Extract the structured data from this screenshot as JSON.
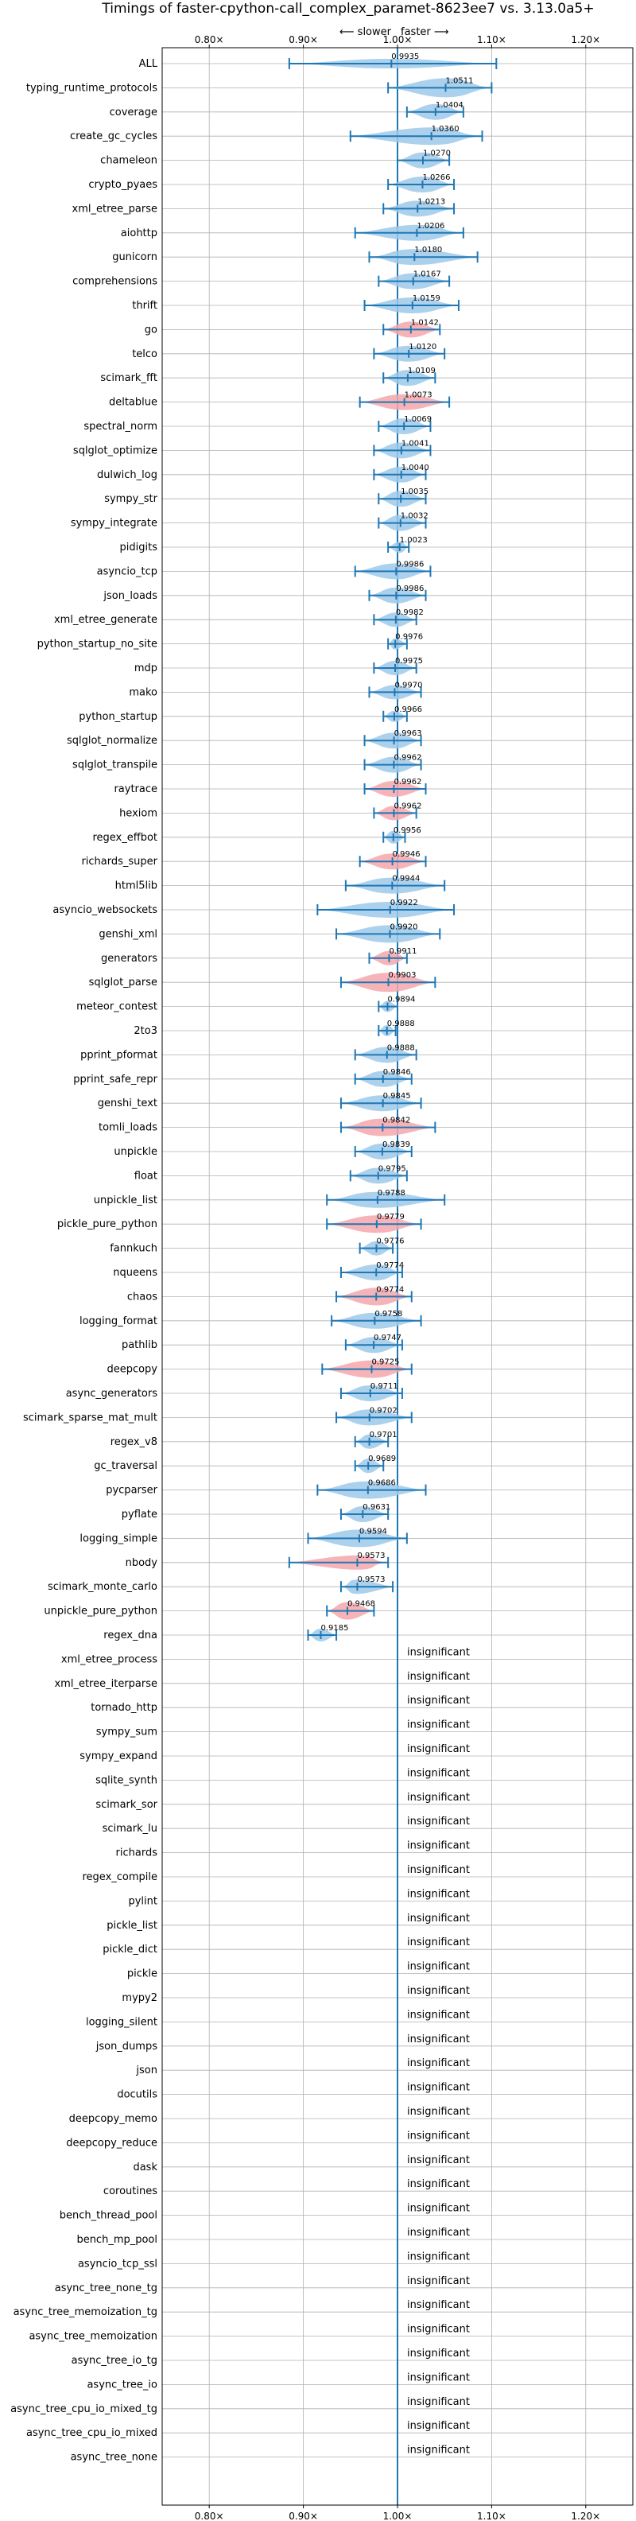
{
  "chart_data": {
    "type": "violin",
    "title": "Timings of faster-cpython-call_complex_paramet-8623ee7 vs. 3.13.0a5+",
    "direction_labels": {
      "slower": "⟵ slower",
      "faster": "faster ⟶"
    },
    "xlim": [
      0.75,
      1.25
    ],
    "xticks": [
      0.8,
      0.9,
      1.0,
      1.1,
      1.2
    ],
    "xtick_labels": [
      "0.80×",
      "0.90×",
      "1.00×",
      "1.10×",
      "1.20×"
    ],
    "grid": true,
    "reference_line": 1.0,
    "colors": {
      "faster": "#9ec9ea",
      "slower": "#f4a7ad",
      "line": "#1f77b4",
      "grid": "#b0b0b0"
    },
    "insignificant_label": "insignificant",
    "benchmarks": [
      {
        "name": "ALL",
        "value": 0.9935,
        "label": "0.9935",
        "lo": 0.885,
        "hi": 1.105,
        "color": "faster",
        "width": 0.3
      },
      {
        "name": "typing_runtime_protocols",
        "value": 1.0511,
        "label": "1.0511",
        "lo": 0.99,
        "hi": 1.1,
        "color": "faster",
        "width": 0.9
      },
      {
        "name": "coverage",
        "value": 1.0404,
        "label": "1.0404",
        "lo": 1.01,
        "hi": 1.07,
        "color": "faster",
        "width": 0.7
      },
      {
        "name": "create_gc_cycles",
        "value": 1.036,
        "label": "1.0360",
        "lo": 0.95,
        "hi": 1.09,
        "color": "faster",
        "width": 0.8
      },
      {
        "name": "chameleon",
        "value": 1.027,
        "label": "1.0270",
        "lo": 1.0,
        "hi": 1.055,
        "color": "faster",
        "width": 0.7
      },
      {
        "name": "crypto_pyaes",
        "value": 1.0266,
        "label": "1.0266",
        "lo": 0.99,
        "hi": 1.06,
        "color": "faster",
        "width": 0.7
      },
      {
        "name": "xml_etree_parse",
        "value": 1.0213,
        "label": "1.0213",
        "lo": 0.985,
        "hi": 1.06,
        "color": "faster",
        "width": 0.7
      },
      {
        "name": "aiohttp",
        "value": 1.0206,
        "label": "1.0206",
        "lo": 0.955,
        "hi": 1.07,
        "color": "faster",
        "width": 0.7
      },
      {
        "name": "gunicorn",
        "value": 1.018,
        "label": "1.0180",
        "lo": 0.97,
        "hi": 1.085,
        "color": "faster",
        "width": 0.7
      },
      {
        "name": "comprehensions",
        "value": 1.0167,
        "label": "1.0167",
        "lo": 0.98,
        "hi": 1.055,
        "color": "faster",
        "width": 0.7
      },
      {
        "name": "thrift",
        "value": 1.0159,
        "label": "1.0159",
        "lo": 0.965,
        "hi": 1.065,
        "color": "faster",
        "width": 0.7
      },
      {
        "name": "go",
        "value": 1.0142,
        "label": "1.0142",
        "lo": 0.985,
        "hi": 1.045,
        "color": "slower",
        "width": 0.7
      },
      {
        "name": "telco",
        "value": 1.012,
        "label": "1.0120",
        "lo": 0.975,
        "hi": 1.05,
        "color": "faster",
        "width": 0.7
      },
      {
        "name": "scimark_fft",
        "value": 1.0109,
        "label": "1.0109",
        "lo": 0.985,
        "hi": 1.04,
        "color": "faster",
        "width": 0.7
      },
      {
        "name": "deltablue",
        "value": 1.0073,
        "label": "1.0073",
        "lo": 0.96,
        "hi": 1.055,
        "color": "slower",
        "width": 0.7
      },
      {
        "name": "spectral_norm",
        "value": 1.0069,
        "label": "1.0069",
        "lo": 0.98,
        "hi": 1.035,
        "color": "faster",
        "width": 0.7
      },
      {
        "name": "sqlglot_optimize",
        "value": 1.0041,
        "label": "1.0041",
        "lo": 0.975,
        "hi": 1.035,
        "color": "faster",
        "width": 0.7
      },
      {
        "name": "dulwich_log",
        "value": 1.004,
        "label": "1.0040",
        "lo": 0.975,
        "hi": 1.03,
        "color": "faster",
        "width": 0.7
      },
      {
        "name": "sympy_str",
        "value": 1.0035,
        "label": "1.0035",
        "lo": 0.98,
        "hi": 1.03,
        "color": "faster",
        "width": 0.7
      },
      {
        "name": "sympy_integrate",
        "value": 1.0032,
        "label": "1.0032",
        "lo": 0.98,
        "hi": 1.03,
        "color": "faster",
        "width": 0.7
      },
      {
        "name": "pidigits",
        "value": 1.0023,
        "label": "1.0023",
        "lo": 0.99,
        "hi": 1.012,
        "color": "faster",
        "width": 0.4
      },
      {
        "name": "asyncio_tcp",
        "value": 0.9986,
        "label": "0.9986",
        "lo": 0.955,
        "hi": 1.035,
        "color": "faster",
        "width": 0.7
      },
      {
        "name": "json_loads",
        "value": 0.9986,
        "label": "0.9986",
        "lo": 0.97,
        "hi": 1.03,
        "color": "faster",
        "width": 0.7
      },
      {
        "name": "xml_etree_generate",
        "value": 0.9982,
        "label": "0.9982",
        "lo": 0.975,
        "hi": 1.02,
        "color": "faster",
        "width": 0.6
      },
      {
        "name": "python_startup_no_site",
        "value": 0.9976,
        "label": "0.9976",
        "lo": 0.99,
        "hi": 1.01,
        "color": "faster",
        "width": 0.4
      },
      {
        "name": "mdp",
        "value": 0.9975,
        "label": "0.9975",
        "lo": 0.975,
        "hi": 1.02,
        "color": "faster",
        "width": 0.6
      },
      {
        "name": "mako",
        "value": 0.997,
        "label": "0.9970",
        "lo": 0.97,
        "hi": 1.025,
        "color": "faster",
        "width": 0.6
      },
      {
        "name": "python_startup",
        "value": 0.9966,
        "label": "0.9966",
        "lo": 0.985,
        "hi": 1.01,
        "color": "faster",
        "width": 0.4
      },
      {
        "name": "sqlglot_normalize",
        "value": 0.9963,
        "label": "0.9963",
        "lo": 0.965,
        "hi": 1.025,
        "color": "faster",
        "width": 0.7
      },
      {
        "name": "sqlglot_transpile",
        "value": 0.9962,
        "label": "0.9962",
        "lo": 0.965,
        "hi": 1.025,
        "color": "faster",
        "width": 0.7
      },
      {
        "name": "raytrace",
        "value": 0.9962,
        "label": "0.9962",
        "lo": 0.965,
        "hi": 1.03,
        "color": "slower",
        "width": 0.7
      },
      {
        "name": "hexiom",
        "value": 0.9962,
        "label": "0.9962",
        "lo": 0.975,
        "hi": 1.02,
        "color": "slower",
        "width": 0.6
      },
      {
        "name": "regex_effbot",
        "value": 0.9956,
        "label": "0.9956",
        "lo": 0.985,
        "hi": 1.008,
        "color": "faster",
        "width": 0.5
      },
      {
        "name": "richards_super",
        "value": 0.9946,
        "label": "0.9946",
        "lo": 0.96,
        "hi": 1.03,
        "color": "slower",
        "width": 0.7
      },
      {
        "name": "html5lib",
        "value": 0.9944,
        "label": "0.9944",
        "lo": 0.945,
        "hi": 1.05,
        "color": "faster",
        "width": 0.7
      },
      {
        "name": "asyncio_websockets",
        "value": 0.9922,
        "label": "0.9922",
        "lo": 0.915,
        "hi": 1.06,
        "color": "faster",
        "width": 0.7
      },
      {
        "name": "genshi_xml",
        "value": 0.992,
        "label": "0.9920",
        "lo": 0.935,
        "hi": 1.045,
        "color": "faster",
        "width": 0.8
      },
      {
        "name": "generators",
        "value": 0.9911,
        "label": "0.9911",
        "lo": 0.97,
        "hi": 1.01,
        "color": "slower",
        "width": 0.6
      },
      {
        "name": "sqlglot_parse",
        "value": 0.9903,
        "label": "0.9903",
        "lo": 0.94,
        "hi": 1.04,
        "color": "slower",
        "width": 0.9
      },
      {
        "name": "meteor_contest",
        "value": 0.9894,
        "label": "0.9894",
        "lo": 0.98,
        "hi": 1.0,
        "color": "faster",
        "width": 0.4
      },
      {
        "name": "2to3",
        "value": 0.9888,
        "label": "0.9888",
        "lo": 0.98,
        "hi": 0.998,
        "color": "faster",
        "width": 0.4
      },
      {
        "name": "pprint_pformat",
        "value": 0.9888,
        "label": "0.9888",
        "lo": 0.955,
        "hi": 1.02,
        "color": "faster",
        "width": 0.7
      },
      {
        "name": "pprint_safe_repr",
        "value": 0.9846,
        "label": "0.9846",
        "lo": 0.955,
        "hi": 1.015,
        "color": "faster",
        "width": 0.7
      },
      {
        "name": "genshi_text",
        "value": 0.9845,
        "label": "0.9845",
        "lo": 0.94,
        "hi": 1.025,
        "color": "faster",
        "width": 0.7
      },
      {
        "name": "tomli_loads",
        "value": 0.9842,
        "label": "0.9842",
        "lo": 0.94,
        "hi": 1.04,
        "color": "slower",
        "width": 0.8
      },
      {
        "name": "unpickle",
        "value": 0.9839,
        "label": "0.9839",
        "lo": 0.955,
        "hi": 1.015,
        "color": "faster",
        "width": 0.7
      },
      {
        "name": "float",
        "value": 0.9795,
        "label": "0.9795",
        "lo": 0.95,
        "hi": 1.01,
        "color": "faster",
        "width": 0.7
      },
      {
        "name": "unpickle_list",
        "value": 0.9788,
        "label": "0.9788",
        "lo": 0.925,
        "hi": 1.05,
        "color": "faster",
        "width": 0.7
      },
      {
        "name": "pickle_pure_python",
        "value": 0.9779,
        "label": "0.9779",
        "lo": 0.925,
        "hi": 1.025,
        "color": "slower",
        "width": 0.8
      },
      {
        "name": "fannkuch",
        "value": 0.9776,
        "label": "0.9776",
        "lo": 0.96,
        "hi": 0.995,
        "color": "faster",
        "width": 0.6
      },
      {
        "name": "nqueens",
        "value": 0.9774,
        "label": "0.9774",
        "lo": 0.94,
        "hi": 1.005,
        "color": "faster",
        "width": 0.7
      },
      {
        "name": "chaos",
        "value": 0.9774,
        "label": "0.9774",
        "lo": 0.935,
        "hi": 1.015,
        "color": "slower",
        "width": 0.8
      },
      {
        "name": "logging_format",
        "value": 0.9758,
        "label": "0.9758",
        "lo": 0.93,
        "hi": 1.025,
        "color": "faster",
        "width": 0.7
      },
      {
        "name": "pathlib",
        "value": 0.9747,
        "label": "0.9747",
        "lo": 0.945,
        "hi": 1.005,
        "color": "faster",
        "width": 0.7
      },
      {
        "name": "deepcopy",
        "value": 0.9725,
        "label": "0.9725",
        "lo": 0.92,
        "hi": 1.015,
        "color": "slower",
        "width": 0.8
      },
      {
        "name": "async_generators",
        "value": 0.9711,
        "label": "0.9711",
        "lo": 0.94,
        "hi": 1.005,
        "color": "faster",
        "width": 0.7
      },
      {
        "name": "scimark_sparse_mat_mult",
        "value": 0.9702,
        "label": "0.9702",
        "lo": 0.935,
        "hi": 1.015,
        "color": "faster",
        "width": 0.7
      },
      {
        "name": "regex_v8",
        "value": 0.9701,
        "label": "0.9701",
        "lo": 0.955,
        "hi": 0.99,
        "color": "faster",
        "width": 0.6
      },
      {
        "name": "gc_traversal",
        "value": 0.9689,
        "label": "0.9689",
        "lo": 0.955,
        "hi": 0.985,
        "color": "faster",
        "width": 0.6
      },
      {
        "name": "pycparser",
        "value": 0.9686,
        "label": "0.9686",
        "lo": 0.915,
        "hi": 1.03,
        "color": "faster",
        "width": 0.8
      },
      {
        "name": "pyflate",
        "value": 0.9631,
        "label": "0.9631",
        "lo": 0.94,
        "hi": 0.99,
        "color": "faster",
        "width": 0.7
      },
      {
        "name": "logging_simple",
        "value": 0.9594,
        "label": "0.9594",
        "lo": 0.905,
        "hi": 1.01,
        "color": "faster",
        "width": 0.8
      },
      {
        "name": "nbody",
        "value": 0.9573,
        "label": "0.9573",
        "lo": 0.885,
        "hi": 0.99,
        "color": "slower",
        "width": 0.6
      },
      {
        "name": "scimark_monte_carlo",
        "value": 0.9573,
        "label": "0.9573",
        "lo": 0.94,
        "hi": 0.995,
        "color": "faster",
        "width": 0.6
      },
      {
        "name": "unpickle_pure_python",
        "value": 0.9468,
        "label": "0.9468",
        "lo": 0.925,
        "hi": 0.975,
        "color": "slower",
        "width": 0.8
      },
      {
        "name": "regex_dna",
        "value": 0.9185,
        "label": "0.9185",
        "lo": 0.905,
        "hi": 0.935,
        "color": "faster",
        "width": 0.5
      }
    ],
    "insignificant": [
      "xml_etree_process",
      "xml_etree_iterparse",
      "tornado_http",
      "sympy_sum",
      "sympy_expand",
      "sqlite_synth",
      "scimark_sor",
      "scimark_lu",
      "richards",
      "regex_compile",
      "pylint",
      "pickle_list",
      "pickle_dict",
      "pickle",
      "mypy2",
      "logging_silent",
      "json_dumps",
      "json",
      "docutils",
      "deepcopy_memo",
      "deepcopy_reduce",
      "dask",
      "coroutines",
      "bench_thread_pool",
      "bench_mp_pool",
      "asyncio_tcp_ssl",
      "async_tree_none_tg",
      "async_tree_memoization_tg",
      "async_tree_memoization",
      "async_tree_io_tg",
      "async_tree_io",
      "async_tree_cpu_io_mixed_tg",
      "async_tree_cpu_io_mixed",
      "async_tree_none"
    ]
  }
}
